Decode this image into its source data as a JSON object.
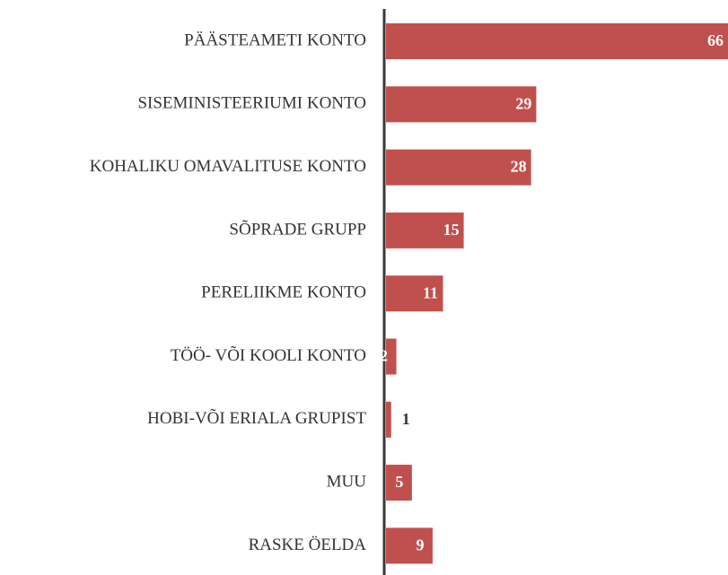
{
  "chart_data": {
    "type": "bar",
    "orientation": "horizontal",
    "categories": [
      "PÄÄSTEAMETI KONTO",
      "SISEMINISTEERIUMI KONTO",
      "KOHALIKU OMAVALITUSE KONTO",
      "SÕPRADE GRUPP",
      "PERELIIKME KONTO",
      "TÖÖ- VÕI KOOLI KONTO",
      "HOBI-VÕI ERIALA GRUPIST",
      "MUU",
      "RASKE ÖELDA"
    ],
    "values": [
      66,
      29,
      28,
      15,
      11,
      2,
      1,
      5,
      9
    ],
    "color": "#c0504d"
  }
}
